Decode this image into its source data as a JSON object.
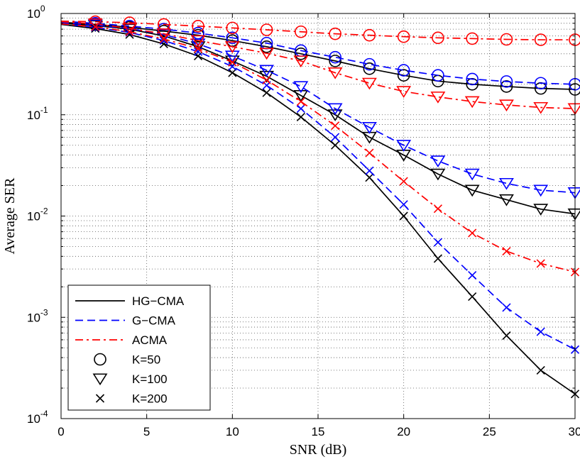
{
  "chart_data": {
    "type": "line",
    "title": "",
    "xlabel": "SNR (dB)",
    "ylabel": "Average SER",
    "xlim": [
      0,
      30
    ],
    "ylim": [
      0.0001,
      1
    ],
    "yscale": "log",
    "grid": true,
    "legend_position": "bottom-left",
    "x_ticks": [
      0,
      5,
      10,
      15,
      20,
      25,
      30
    ],
    "y_ticks": [
      {
        "base": "10",
        "exp": "0",
        "value": 1
      },
      {
        "base": "10",
        "exp": "-1",
        "value": 0.1
      },
      {
        "base": "10",
        "exp": "-2",
        "value": 0.01
      },
      {
        "base": "10",
        "exp": "-3",
        "value": 0.001
      },
      {
        "base": "10",
        "exp": "-4",
        "value": 0.0001
      }
    ],
    "x": [
      0,
      2,
      4,
      6,
      8,
      10,
      12,
      14,
      16,
      18,
      20,
      22,
      24,
      26,
      28,
      30
    ],
    "series": [
      {
        "name": "HG-CMA, K=50",
        "method": "HG-CMA",
        "K": 50,
        "color": "#000000",
        "dash": "solid",
        "marker": "circle",
        "values": [
          0.82,
          0.78,
          0.73,
          0.67,
          0.61,
          0.54,
          0.47,
          0.4,
          0.34,
          0.285,
          0.245,
          0.215,
          0.2,
          0.19,
          0.182,
          0.178
        ]
      },
      {
        "name": "G-CMA, K=50",
        "method": "G-CMA",
        "K": 50,
        "color": "#0000ff",
        "dash": "dashed",
        "marker": "circle",
        "values": [
          0.84,
          0.8,
          0.75,
          0.7,
          0.64,
          0.575,
          0.51,
          0.43,
          0.37,
          0.315,
          0.275,
          0.245,
          0.225,
          0.213,
          0.205,
          0.2
        ]
      },
      {
        "name": "ACMA, K=50",
        "method": "ACMA",
        "K": 50,
        "color": "#ff0000",
        "dash": "dashdot",
        "marker": "circle",
        "values": [
          0.84,
          0.83,
          0.81,
          0.78,
          0.75,
          0.72,
          0.69,
          0.66,
          0.63,
          0.61,
          0.59,
          0.575,
          0.565,
          0.555,
          0.55,
          0.55
        ]
      },
      {
        "name": "HG-CMA, K=100",
        "method": "HG-CMA",
        "K": 100,
        "color": "#000000",
        "dash": "solid",
        "marker": "triangle",
        "values": [
          0.8,
          0.76,
          0.7,
          0.6,
          0.47,
          0.34,
          0.24,
          0.155,
          0.1,
          0.06,
          0.04,
          0.026,
          0.018,
          0.0145,
          0.0117,
          0.0105
        ]
      },
      {
        "name": "G-CMA, K=100",
        "method": "G-CMA",
        "K": 100,
        "color": "#0000ff",
        "dash": "dashed",
        "marker": "triangle",
        "values": [
          0.81,
          0.77,
          0.71,
          0.62,
          0.5,
          0.38,
          0.275,
          0.19,
          0.115,
          0.075,
          0.05,
          0.035,
          0.026,
          0.021,
          0.018,
          0.017
        ]
      },
      {
        "name": "ACMA, K=100",
        "method": "ACMA",
        "K": 100,
        "color": "#ff0000",
        "dash": "dashdot",
        "marker": "triangle",
        "values": [
          0.83,
          0.79,
          0.71,
          0.63,
          0.54,
          0.47,
          0.405,
          0.34,
          0.26,
          0.205,
          0.17,
          0.15,
          0.135,
          0.125,
          0.118,
          0.115
        ]
      },
      {
        "name": "HG-CMA, K=200",
        "method": "HG-CMA",
        "K": 200,
        "color": "#000000",
        "dash": "solid",
        "marker": "cross",
        "values": [
          0.78,
          0.71,
          0.62,
          0.5,
          0.38,
          0.26,
          0.165,
          0.095,
          0.05,
          0.024,
          0.01,
          0.0038,
          0.0016,
          0.00066,
          0.0003,
          0.000175
        ]
      },
      {
        "name": "G-CMA, K=200",
        "method": "G-CMA",
        "K": 200,
        "color": "#0000ff",
        "dash": "dashed",
        "marker": "cross",
        "values": [
          0.79,
          0.73,
          0.65,
          0.54,
          0.42,
          0.3,
          0.195,
          0.115,
          0.06,
          0.028,
          0.013,
          0.0055,
          0.0026,
          0.00125,
          0.00072,
          0.00048
        ]
      },
      {
        "name": "ACMA, K=200",
        "method": "ACMA",
        "K": 200,
        "color": "#ff0000",
        "dash": "dashdot",
        "marker": "cross",
        "values": [
          0.79,
          0.74,
          0.66,
          0.56,
          0.45,
          0.33,
          0.22,
          0.135,
          0.078,
          0.042,
          0.022,
          0.0118,
          0.0068,
          0.0045,
          0.0034,
          0.0028
        ]
      }
    ],
    "legend": [
      {
        "label": "HG−CMA",
        "kind": "line",
        "color": "#000000",
        "dash": "solid"
      },
      {
        "label": "G−CMA",
        "kind": "line",
        "color": "#0000ff",
        "dash": "dashed"
      },
      {
        "label": "ACMA",
        "kind": "line",
        "color": "#ff0000",
        "dash": "dashdot"
      },
      {
        "label": "K=50",
        "kind": "marker",
        "marker": "circle",
        "color": "#000000"
      },
      {
        "label": "K=100",
        "kind": "marker",
        "marker": "triangle",
        "color": "#000000"
      },
      {
        "label": "K=200",
        "kind": "marker",
        "marker": "cross",
        "color": "#000000"
      }
    ]
  }
}
